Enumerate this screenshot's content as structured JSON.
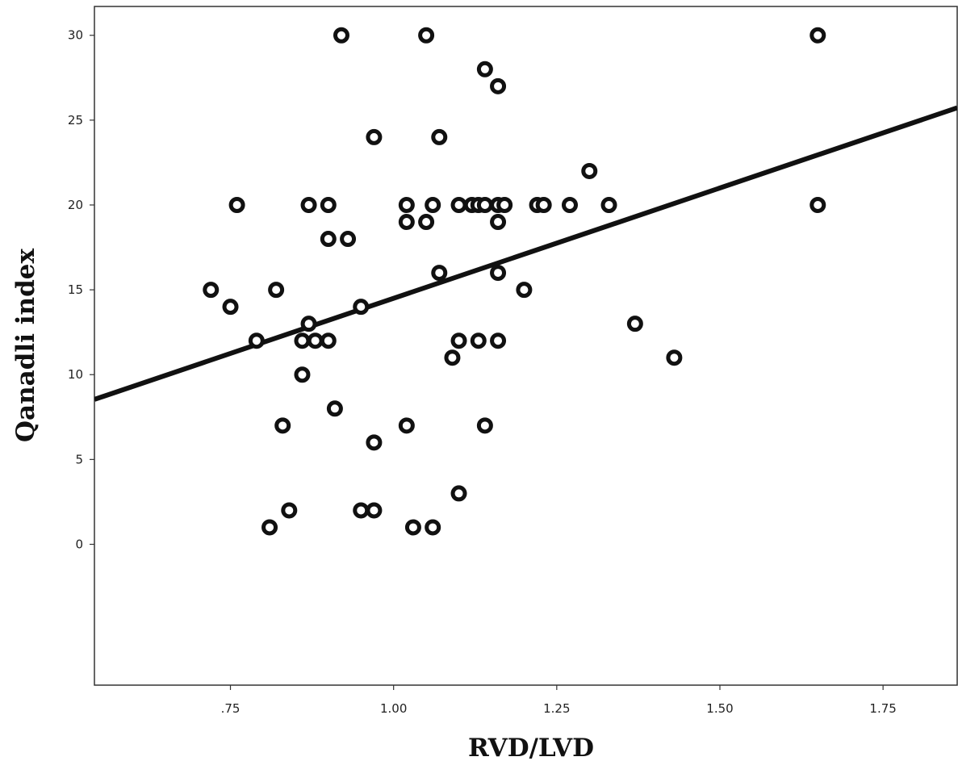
{
  "chart_data": {
    "type": "scatter",
    "title": "",
    "xlabel": "RVD/LVD",
    "ylabel": "Qanadli index",
    "xlim": [
      0.5416,
      1.8636
    ],
    "ylim": [
      -8.3,
      31.7
    ],
    "x_ticks": [
      {
        "value": 0.75,
        "label": ".75"
      },
      {
        "value": 1.0,
        "label": "1.00"
      },
      {
        "value": 1.25,
        "label": "1.25"
      },
      {
        "value": 1.5,
        "label": "1.50"
      },
      {
        "value": 1.75,
        "label": "1.75"
      }
    ],
    "y_ticks": [
      {
        "value": 0,
        "label": "0"
      },
      {
        "value": 5,
        "label": "5"
      },
      {
        "value": 10,
        "label": "10"
      },
      {
        "value": 15,
        "label": "15"
      },
      {
        "value": 20,
        "label": "20"
      },
      {
        "value": 25,
        "label": "25"
      },
      {
        "value": 30,
        "label": "30"
      }
    ],
    "grid": false,
    "legend": "none",
    "marker_color": "#111111",
    "line_color": "#111111",
    "points": [
      {
        "x": 0.72,
        "y": 15
      },
      {
        "x": 0.75,
        "y": 14
      },
      {
        "x": 0.76,
        "y": 20
      },
      {
        "x": 0.79,
        "y": 12
      },
      {
        "x": 0.81,
        "y": 1
      },
      {
        "x": 0.82,
        "y": 15
      },
      {
        "x": 0.83,
        "y": 7
      },
      {
        "x": 0.84,
        "y": 2
      },
      {
        "x": 0.86,
        "y": 12
      },
      {
        "x": 0.86,
        "y": 10
      },
      {
        "x": 0.87,
        "y": 20
      },
      {
        "x": 0.87,
        "y": 13
      },
      {
        "x": 0.88,
        "y": 12
      },
      {
        "x": 0.9,
        "y": 20
      },
      {
        "x": 0.9,
        "y": 18
      },
      {
        "x": 0.9,
        "y": 12
      },
      {
        "x": 0.91,
        "y": 8
      },
      {
        "x": 0.92,
        "y": 30
      },
      {
        "x": 0.93,
        "y": 18
      },
      {
        "x": 0.95,
        "y": 14
      },
      {
        "x": 0.95,
        "y": 2
      },
      {
        "x": 0.97,
        "y": 24
      },
      {
        "x": 0.97,
        "y": 6
      },
      {
        "x": 0.97,
        "y": 2
      },
      {
        "x": 1.02,
        "y": 20
      },
      {
        "x": 1.02,
        "y": 19
      },
      {
        "x": 1.02,
        "y": 7
      },
      {
        "x": 1.03,
        "y": 1
      },
      {
        "x": 1.05,
        "y": 30
      },
      {
        "x": 1.05,
        "y": 19
      },
      {
        "x": 1.06,
        "y": 20
      },
      {
        "x": 1.06,
        "y": 1
      },
      {
        "x": 1.07,
        "y": 24
      },
      {
        "x": 1.07,
        "y": 16
      },
      {
        "x": 1.09,
        "y": 11
      },
      {
        "x": 1.1,
        "y": 20
      },
      {
        "x": 1.1,
        "y": 12
      },
      {
        "x": 1.1,
        "y": 3
      },
      {
        "x": 1.12,
        "y": 20
      },
      {
        "x": 1.13,
        "y": 20
      },
      {
        "x": 1.13,
        "y": 12
      },
      {
        "x": 1.14,
        "y": 28
      },
      {
        "x": 1.14,
        "y": 20
      },
      {
        "x": 1.14,
        "y": 7
      },
      {
        "x": 1.16,
        "y": 27
      },
      {
        "x": 1.16,
        "y": 20
      },
      {
        "x": 1.16,
        "y": 19
      },
      {
        "x": 1.16,
        "y": 16
      },
      {
        "x": 1.16,
        "y": 12
      },
      {
        "x": 1.17,
        "y": 20
      },
      {
        "x": 1.2,
        "y": 15
      },
      {
        "x": 1.22,
        "y": 20
      },
      {
        "x": 1.23,
        "y": 20
      },
      {
        "x": 1.27,
        "y": 20
      },
      {
        "x": 1.3,
        "y": 22
      },
      {
        "x": 1.33,
        "y": 20
      },
      {
        "x": 1.37,
        "y": 13
      },
      {
        "x": 1.43,
        "y": 11
      },
      {
        "x": 1.65,
        "y": 30
      },
      {
        "x": 1.65,
        "y": 20
      }
    ],
    "fit_line": {
      "type": "linear",
      "slope": 13.0,
      "intercept": 1.5
    }
  }
}
